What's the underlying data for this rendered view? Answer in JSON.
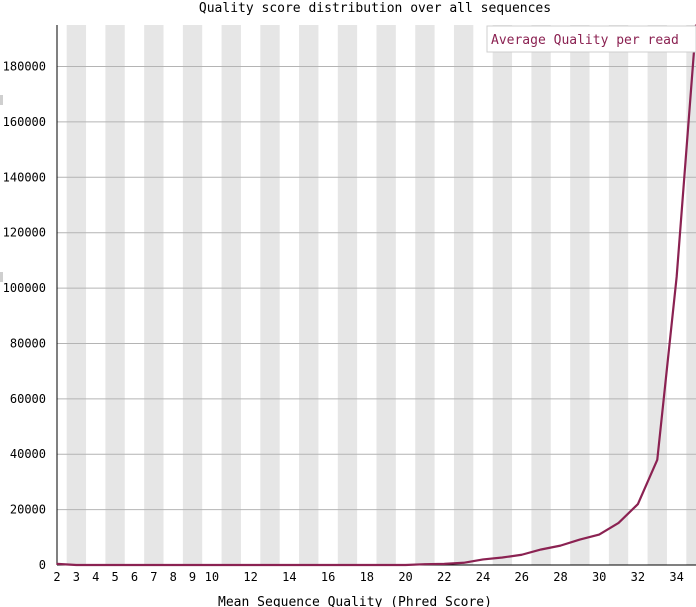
{
  "chart_data": {
    "type": "line",
    "title": "Quality score distribution over all sequences",
    "xlabel": "Mean Sequence Quality (Phred Score)",
    "ylabel": "",
    "x": [
      2,
      3,
      4,
      5,
      6,
      7,
      8,
      9,
      10,
      11,
      12,
      13,
      14,
      15,
      16,
      17,
      18,
      19,
      20,
      21,
      22,
      23,
      24,
      25,
      26,
      27,
      28,
      29,
      30,
      31,
      32,
      33,
      34,
      35
    ],
    "series": [
      {
        "name": "Average Quality per read",
        "values": [
          400,
          0,
          0,
          0,
          0,
          0,
          0,
          0,
          0,
          0,
          0,
          0,
          0,
          0,
          0,
          0,
          0,
          0,
          0,
          300,
          400,
          800,
          2000,
          2700,
          3700,
          5600,
          7000,
          9200,
          11000,
          15200,
          22000,
          38000,
          104000,
          195000
        ]
      }
    ],
    "x_tick_labels": [
      "2",
      "3",
      "4",
      "5",
      "6",
      "7",
      "8",
      "9",
      "10",
      "12",
      "14",
      "16",
      "18",
      "20",
      "22",
      "24",
      "26",
      "28",
      "30",
      "32",
      "34"
    ],
    "y_ticks": [
      0,
      20000,
      40000,
      60000,
      80000,
      100000,
      120000,
      140000,
      160000,
      180000
    ],
    "xlim": [
      2,
      35
    ],
    "ylim": [
      0,
      195000
    ],
    "grid": true,
    "legend": "top-right",
    "colors": {
      "series": "#8b2252",
      "band": "#e6e6e6",
      "gridline": "#b4b4b4"
    }
  }
}
